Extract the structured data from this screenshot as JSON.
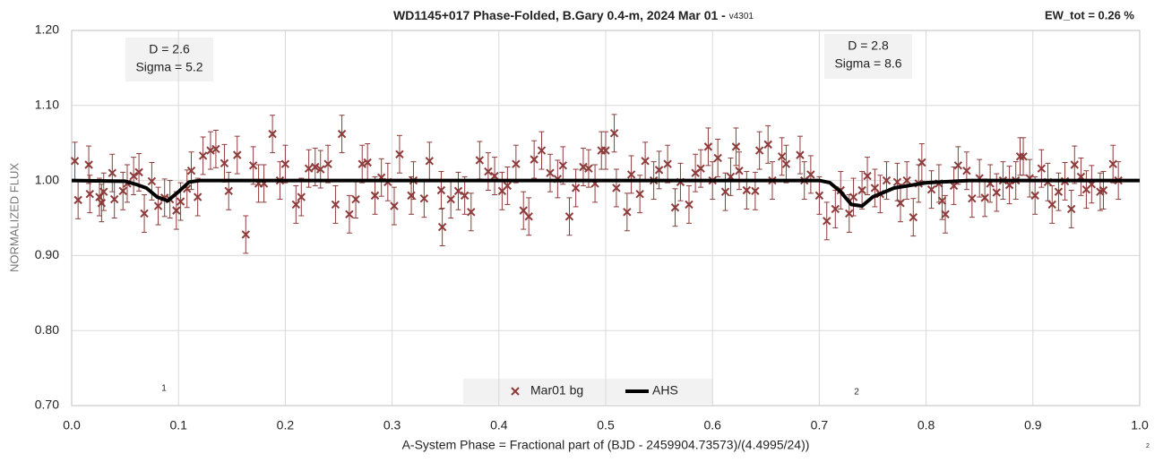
{
  "chart_data": {
    "type": "scatter",
    "title": "WD1145+017 Phase-Folded, B.Gary 0.4-m, 2024 Mar 01 - ",
    "title_suffix": "v4301",
    "xlabel": "A-System Phase = Fractional part of (BJD - 2459904.73573)/(4.4995/24))",
    "ylabel": "NORMALIZED FLUX",
    "annotations": [
      "EW_tot = 0.26 %",
      "D = 2.6",
      "Sigma = 5.2",
      "D = 2.8",
      "Sigma = 8.6",
      "1",
      "2",
      "2"
    ],
    "xlim": [
      0,
      1
    ],
    "ylim": [
      0.7,
      1.2
    ],
    "xticks": [
      {
        "value": 0,
        "label": "0.0"
      },
      0.1,
      0.2,
      0.3,
      0.4,
      0.5,
      0.6,
      0.7,
      0.8,
      0.9,
      {
        "value": 1,
        "label": "1.0"
      }
    ],
    "yticks": [
      {
        "value": 0.7,
        "label": "0.70"
      },
      {
        "value": 0.8,
        "label": "0.80"
      },
      {
        "value": 0.9,
        "label": "0.90"
      },
      {
        "value": 1.0,
        "label": "1.00"
      },
      {
        "value": 1.1,
        "label": "1.10"
      },
      {
        "value": 1.2,
        "label": "1.20"
      }
    ],
    "grid": true,
    "series": [
      {
        "name": "Mar01 bg",
        "type": "scatter",
        "color": "#8e3b3b",
        "error": 0.025,
        "x": [
          0.003,
          0.006,
          0.016,
          0.017,
          0.026,
          0.028,
          0.03,
          0.038,
          0.04,
          0.048,
          0.052,
          0.058,
          0.063,
          0.068,
          0.075,
          0.081,
          0.087,
          0.092,
          0.098,
          0.102,
          0.108,
          0.112,
          0.118,
          0.123,
          0.13,
          0.135,
          0.143,
          0.147,
          0.155,
          0.163,
          0.17,
          0.175,
          0.18,
          0.188,
          0.195,
          0.2,
          0.21,
          0.215,
          0.222,
          0.228,
          0.233,
          0.24,
          0.247,
          0.253,
          0.26,
          0.266,
          0.272,
          0.277,
          0.284,
          0.29,
          0.296,
          0.302,
          0.307,
          0.318,
          0.32,
          0.33,
          0.335,
          0.346,
          0.347,
          0.355,
          0.362,
          0.368,
          0.374,
          0.382,
          0.39,
          0.396,
          0.403,
          0.408,
          0.416,
          0.423,
          0.428,
          0.433,
          0.44,
          0.448,
          0.455,
          0.46,
          0.466,
          0.472,
          0.479,
          0.484,
          0.49,
          0.496,
          0.5,
          0.508,
          0.51,
          0.52,
          0.524,
          0.532,
          0.537,
          0.545,
          0.55,
          0.558,
          0.565,
          0.57,
          0.578,
          0.584,
          0.589,
          0.596,
          0.6,
          0.605,
          0.612,
          0.617,
          0.622,
          0.625,
          0.632,
          0.64,
          0.644,
          0.652,
          0.656,
          0.665,
          0.669,
          0.682,
          0.686,
          0.692,
          0.7,
          0.707,
          0.715,
          0.72,
          0.728,
          0.732,
          0.74,
          0.745,
          0.752,
          0.757,
          0.763,
          0.773,
          0.776,
          0.782,
          0.788,
          0.793,
          0.796,
          0.805,
          0.812,
          0.815,
          0.818,
          0.826,
          0.83,
          0.838,
          0.843,
          0.85,
          0.855,
          0.86,
          0.866,
          0.872,
          0.878,
          0.884,
          0.888,
          0.891,
          0.897,
          0.902,
          0.908,
          0.914,
          0.918,
          0.924,
          0.93,
          0.936,
          0.939,
          0.945,
          0.95,
          0.955,
          0.963,
          0.966,
          0.975,
          0.98
        ],
        "values": [
          1.026,
          0.974,
          1.021,
          0.982,
          0.978,
          0.97,
          0.985,
          1.01,
          0.975,
          0.986,
          0.996,
          1.006,
          1.011,
          0.956,
          0.999,
          0.966,
          0.977,
          0.975,
          0.96,
          0.972,
          0.989,
          1.013,
          0.978,
          1.033,
          1.04,
          1.042,
          1.023,
          0.986,
          1.034,
          0.928,
          1.02,
          0.996,
          0.996,
          1.062,
          1.0,
          1.022,
          0.968,
          0.978,
          1.016,
          1.018,
          1.015,
          1.022,
          0.968,
          1.062,
          0.955,
          0.975,
          1.022,
          1.024,
          0.98,
          1.004,
          0.998,
          0.966,
          1.035,
          0.98,
          1.0,
          0.976,
          1.026,
          0.987,
          0.938,
          0.975,
          0.986,
          0.98,
          0.958,
          1.027,
          1.012,
          1.006,
          0.986,
          0.993,
          1.022,
          0.96,
          0.952,
          1.028,
          1.04,
          1.01,
          1.002,
          1.02,
          0.952,
          0.99,
          1.018,
          1.016,
          0.996,
          1.04,
          1.04,
          1.063,
          0.99,
          0.958,
          1.008,
          0.982,
          1.026,
          1.0,
          1.014,
          1.022,
          0.964,
          0.998,
          0.968,
          1.01,
          1.016,
          1.045,
          1.0,
          1.03,
          0.985,
          1.005,
          1.045,
          1.013,
          0.987,
          0.986,
          1.04,
          1.048,
          1.0,
          1.032,
          1.022,
          1.034,
          1.0,
          1.008,
          0.98,
          0.946,
          0.962,
          0.987,
          0.956,
          0.978,
          0.987,
          1.006,
          0.99,
          0.982,
          1.0,
          0.998,
          0.97,
          1.0,
          0.951,
          0.996,
          1.024,
          0.988,
          0.996,
          0.973,
          0.955,
          0.993,
          1.02,
          1.013,
          0.976,
          1.003,
          0.977,
          0.996,
          0.984,
          1.0,
          0.994,
          1.0,
          1.032,
          1.032,
          1.003,
          0.98,
          1.016,
          0.998,
          0.968,
          0.985,
          0.999,
          0.962,
          1.021,
          1.005,
          0.988,
          0.995,
          0.985,
          0.987,
          1.022,
          1.0
        ]
      },
      {
        "name": "AHS",
        "type": "line",
        "color": "#000000",
        "x": [
          0,
          0.05,
          0.06,
          0.07,
          0.08,
          0.09,
          0.1,
          0.11,
          0.12,
          0.5,
          0.69,
          0.7,
          0.71,
          0.72,
          0.73,
          0.74,
          0.75,
          0.77,
          0.8,
          0.84,
          1
        ],
        "values": [
          1,
          0.999,
          0.995,
          0.99,
          0.978,
          0.973,
          0.985,
          0.998,
          1,
          1,
          1,
          1,
          0.997,
          0.985,
          0.968,
          0.966,
          0.978,
          0.99,
          0.997,
          1,
          1
        ]
      }
    ]
  }
}
